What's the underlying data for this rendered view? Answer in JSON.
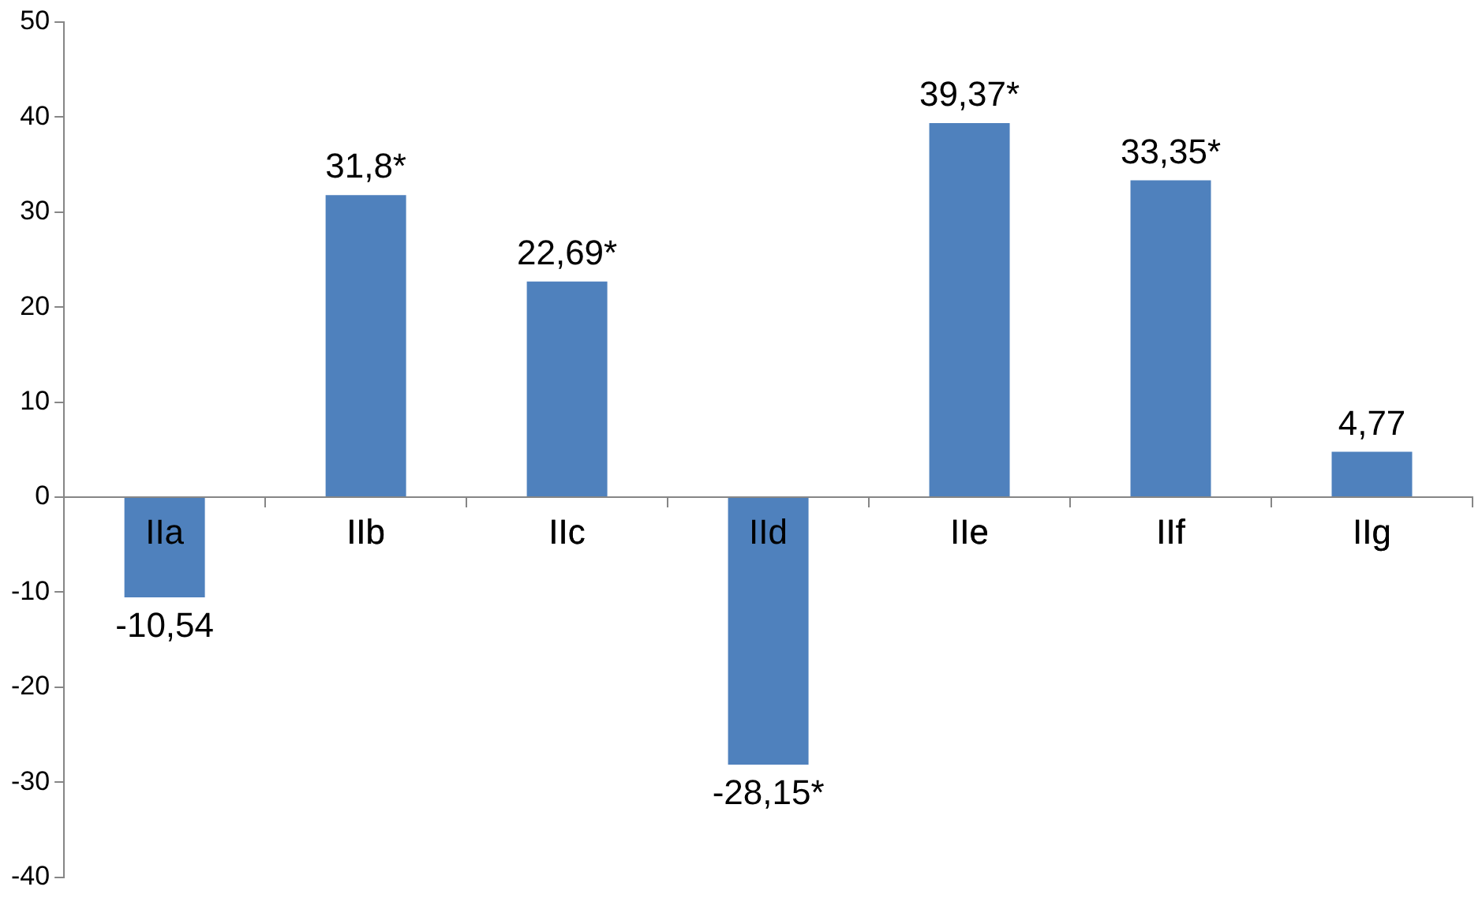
{
  "chart_data": {
    "type": "bar",
    "categories": [
      "IIa",
      "IIb",
      "IIc",
      "IId",
      "IIe",
      "IIf",
      "IIg"
    ],
    "values": [
      -10.54,
      31.8,
      22.69,
      -28.15,
      39.37,
      33.35,
      4.77
    ],
    "value_labels": [
      "-10,54",
      "31,8*",
      "22,69*",
      "-28,15*",
      "39,37*",
      "33,35*",
      "4,77"
    ],
    "color": "#4f81bd",
    "ylim": [
      -40,
      50
    ],
    "yticks": [
      -40,
      -30,
      -20,
      -10,
      0,
      10,
      20,
      30,
      40,
      50
    ],
    "grid": false,
    "legend": false
  }
}
